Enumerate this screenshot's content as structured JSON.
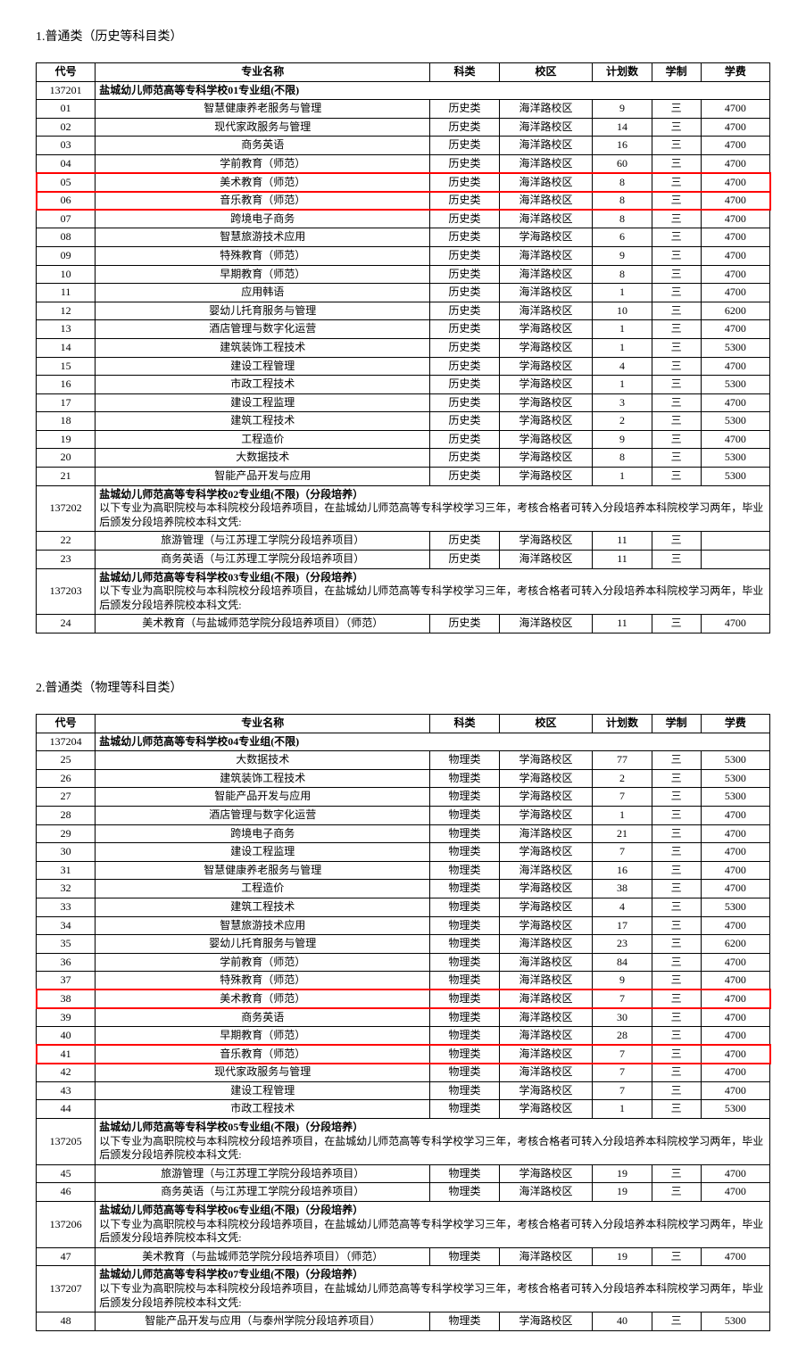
{
  "colors": {
    "highlight": "#f00",
    "border": "#000",
    "bg": "#ffffff"
  },
  "headers": {
    "code": "代号",
    "major": "专业名称",
    "type": "科类",
    "campus": "校区",
    "plan": "计划数",
    "years": "学制",
    "fee": "学费"
  },
  "sections": [
    {
      "title": "1.普通类（历史等科目类）",
      "groups": [
        {
          "code": "137201",
          "header": "盐城幼儿师范高等专科学校01专业组(不限)",
          "note": "",
          "rows": [
            {
              "c": "01",
              "m": "智慧健康养老服务与管理",
              "t": "历史类",
              "p": "海洋路校区",
              "n": "9",
              "y": "三",
              "f": "4700"
            },
            {
              "c": "02",
              "m": "现代家政服务与管理",
              "t": "历史类",
              "p": "海洋路校区",
              "n": "14",
              "y": "三",
              "f": "4700"
            },
            {
              "c": "03",
              "m": "商务英语",
              "t": "历史类",
              "p": "海洋路校区",
              "n": "16",
              "y": "三",
              "f": "4700"
            },
            {
              "c": "04",
              "m": "学前教育（师范）",
              "t": "历史类",
              "p": "海洋路校区",
              "n": "60",
              "y": "三",
              "f": "4700"
            },
            {
              "c": "05",
              "m": "美术教育（师范）",
              "t": "历史类",
              "p": "海洋路校区",
              "n": "8",
              "y": "三",
              "f": "4700",
              "hl": true
            },
            {
              "c": "06",
              "m": "音乐教育（师范）",
              "t": "历史类",
              "p": "海洋路校区",
              "n": "8",
              "y": "三",
              "f": "4700",
              "hl": true
            },
            {
              "c": "07",
              "m": "跨境电子商务",
              "t": "历史类",
              "p": "海洋路校区",
              "n": "8",
              "y": "三",
              "f": "4700"
            },
            {
              "c": "08",
              "m": "智慧旅游技术应用",
              "t": "历史类",
              "p": "学海路校区",
              "n": "6",
              "y": "三",
              "f": "4700"
            },
            {
              "c": "09",
              "m": "特殊教育（师范）",
              "t": "历史类",
              "p": "海洋路校区",
              "n": "9",
              "y": "三",
              "f": "4700"
            },
            {
              "c": "10",
              "m": "早期教育（师范）",
              "t": "历史类",
              "p": "海洋路校区",
              "n": "8",
              "y": "三",
              "f": "4700"
            },
            {
              "c": "11",
              "m": "应用韩语",
              "t": "历史类",
              "p": "海洋路校区",
              "n": "1",
              "y": "三",
              "f": "4700"
            },
            {
              "c": "12",
              "m": "婴幼儿托育服务与管理",
              "t": "历史类",
              "p": "海洋路校区",
              "n": "10",
              "y": "三",
              "f": "6200"
            },
            {
              "c": "13",
              "m": "酒店管理与数字化运营",
              "t": "历史类",
              "p": "学海路校区",
              "n": "1",
              "y": "三",
              "f": "4700"
            },
            {
              "c": "14",
              "m": "建筑装饰工程技术",
              "t": "历史类",
              "p": "学海路校区",
              "n": "1",
              "y": "三",
              "f": "5300"
            },
            {
              "c": "15",
              "m": "建设工程管理",
              "t": "历史类",
              "p": "学海路校区",
              "n": "4",
              "y": "三",
              "f": "4700"
            },
            {
              "c": "16",
              "m": "市政工程技术",
              "t": "历史类",
              "p": "学海路校区",
              "n": "1",
              "y": "三",
              "f": "5300"
            },
            {
              "c": "17",
              "m": "建设工程监理",
              "t": "历史类",
              "p": "学海路校区",
              "n": "3",
              "y": "三",
              "f": "4700"
            },
            {
              "c": "18",
              "m": "建筑工程技术",
              "t": "历史类",
              "p": "学海路校区",
              "n": "2",
              "y": "三",
              "f": "5300"
            },
            {
              "c": "19",
              "m": "工程造价",
              "t": "历史类",
              "p": "学海路校区",
              "n": "9",
              "y": "三",
              "f": "4700"
            },
            {
              "c": "20",
              "m": "大数据技术",
              "t": "历史类",
              "p": "学海路校区",
              "n": "8",
              "y": "三",
              "f": "5300"
            },
            {
              "c": "21",
              "m": "智能产品开发与应用",
              "t": "历史类",
              "p": "学海路校区",
              "n": "1",
              "y": "三",
              "f": "5300"
            }
          ]
        },
        {
          "code": "137202",
          "header": "盐城幼儿师范高等专科学校02专业组(不限)（分段培养）",
          "note": "以下专业为高职院校与本科院校分段培养项目，在盐城幼儿师范高等专科学校学习三年，考核合格者可转入分段培养本科院校学习两年，毕业后颁发分段培养院校本科文凭:",
          "rows": [
            {
              "c": "22",
              "m": "旅游管理（与江苏理工学院分段培养项目）",
              "t": "历史类",
              "p": "学海路校区",
              "n": "11",
              "y": "三",
              "f": ""
            },
            {
              "c": "23",
              "m": "商务英语（与江苏理工学院分段培养项目）",
              "t": "历史类",
              "p": "海洋路校区",
              "n": "11",
              "y": "三",
              "f": ""
            }
          ]
        },
        {
          "code": "137203",
          "header": "盐城幼儿师范高等专科学校03专业组(不限)（分段培养）",
          "note": "以下专业为高职院校与本科院校分段培养项目，在盐城幼儿师范高等专科学校学习三年，考核合格者可转入分段培养本科院校学习两年，毕业后颁发分段培养院校本科文凭:",
          "rows": [
            {
              "c": "24",
              "m": "美术教育（与盐城师范学院分段培养项目）（师范）",
              "t": "历史类",
              "p": "海洋路校区",
              "n": "11",
              "y": "三",
              "f": "4700"
            }
          ]
        }
      ]
    },
    {
      "title": "2.普通类（物理等科目类）",
      "groups": [
        {
          "code": "137204",
          "header": "盐城幼儿师范高等专科学校04专业组(不限)",
          "note": "",
          "rows": [
            {
              "c": "25",
              "m": "大数据技术",
              "t": "物理类",
              "p": "学海路校区",
              "n": "77",
              "y": "三",
              "f": "5300"
            },
            {
              "c": "26",
              "m": "建筑装饰工程技术",
              "t": "物理类",
              "p": "学海路校区",
              "n": "2",
              "y": "三",
              "f": "5300"
            },
            {
              "c": "27",
              "m": "智能产品开发与应用",
              "t": "物理类",
              "p": "学海路校区",
              "n": "7",
              "y": "三",
              "f": "5300"
            },
            {
              "c": "28",
              "m": "酒店管理与数字化运营",
              "t": "物理类",
              "p": "学海路校区",
              "n": "1",
              "y": "三",
              "f": "4700"
            },
            {
              "c": "29",
              "m": "跨境电子商务",
              "t": "物理类",
              "p": "海洋路校区",
              "n": "21",
              "y": "三",
              "f": "4700"
            },
            {
              "c": "30",
              "m": "建设工程监理",
              "t": "物理类",
              "p": "学海路校区",
              "n": "7",
              "y": "三",
              "f": "4700"
            },
            {
              "c": "31",
              "m": "智慧健康养老服务与管理",
              "t": "物理类",
              "p": "海洋路校区",
              "n": "16",
              "y": "三",
              "f": "4700"
            },
            {
              "c": "32",
              "m": "工程造价",
              "t": "物理类",
              "p": "学海路校区",
              "n": "38",
              "y": "三",
              "f": "4700"
            },
            {
              "c": "33",
              "m": "建筑工程技术",
              "t": "物理类",
              "p": "学海路校区",
              "n": "4",
              "y": "三",
              "f": "5300"
            },
            {
              "c": "34",
              "m": "智慧旅游技术应用",
              "t": "物理类",
              "p": "学海路校区",
              "n": "17",
              "y": "三",
              "f": "4700"
            },
            {
              "c": "35",
              "m": "婴幼儿托育服务与管理",
              "t": "物理类",
              "p": "海洋路校区",
              "n": "23",
              "y": "三",
              "f": "6200"
            },
            {
              "c": "36",
              "m": "学前教育（师范）",
              "t": "物理类",
              "p": "海洋路校区",
              "n": "84",
              "y": "三",
              "f": "4700"
            },
            {
              "c": "37",
              "m": "特殊教育（师范）",
              "t": "物理类",
              "p": "海洋路校区",
              "n": "9",
              "y": "三",
              "f": "4700"
            },
            {
              "c": "38",
              "m": "美术教育（师范）",
              "t": "物理类",
              "p": "海洋路校区",
              "n": "7",
              "y": "三",
              "f": "4700",
              "hl": true
            },
            {
              "c": "39",
              "m": "商务英语",
              "t": "物理类",
              "p": "海洋路校区",
              "n": "30",
              "y": "三",
              "f": "4700"
            },
            {
              "c": "40",
              "m": "早期教育（师范）",
              "t": "物理类",
              "p": "海洋路校区",
              "n": "28",
              "y": "三",
              "f": "4700"
            },
            {
              "c": "41",
              "m": "音乐教育（师范）",
              "t": "物理类",
              "p": "海洋路校区",
              "n": "7",
              "y": "三",
              "f": "4700",
              "hl": true
            },
            {
              "c": "42",
              "m": "现代家政服务与管理",
              "t": "物理类",
              "p": "海洋路校区",
              "n": "7",
              "y": "三",
              "f": "4700"
            },
            {
              "c": "43",
              "m": "建设工程管理",
              "t": "物理类",
              "p": "学海路校区",
              "n": "7",
              "y": "三",
              "f": "4700"
            },
            {
              "c": "44",
              "m": "市政工程技术",
              "t": "物理类",
              "p": "学海路校区",
              "n": "1",
              "y": "三",
              "f": "5300"
            }
          ]
        },
        {
          "code": "137205",
          "header": "盐城幼儿师范高等专科学校05专业组(不限)（分段培养）",
          "note": "以下专业为高职院校与本科院校分段培养项目，在盐城幼儿师范高等专科学校学习三年，考核合格者可转入分段培养本科院校学习两年，毕业后颁发分段培养院校本科文凭:",
          "rows": [
            {
              "c": "45",
              "m": "旅游管理（与江苏理工学院分段培养项目）",
              "t": "物理类",
              "p": "学海路校区",
              "n": "19",
              "y": "三",
              "f": "4700"
            },
            {
              "c": "46",
              "m": "商务英语（与江苏理工学院分段培养项目）",
              "t": "物理类",
              "p": "海洋路校区",
              "n": "19",
              "y": "三",
              "f": "4700"
            }
          ]
        },
        {
          "code": "137206",
          "header": "盐城幼儿师范高等专科学校06专业组(不限)（分段培养）",
          "note": "以下专业为高职院校与本科院校分段培养项目，在盐城幼儿师范高等专科学校学习三年，考核合格者可转入分段培养本科院校学习两年，毕业后颁发分段培养院校本科文凭:",
          "rows": [
            {
              "c": "47",
              "m": "美术教育（与盐城师范学院分段培养项目）（师范）",
              "t": "物理类",
              "p": "海洋路校区",
              "n": "19",
              "y": "三",
              "f": "4700"
            }
          ]
        },
        {
          "code": "137207",
          "header": "盐城幼儿师范高等专科学校07专业组(不限)（分段培养）",
          "note": "以下专业为高职院校与本科院校分段培养项目，在盐城幼儿师范高等专科学校学习三年，考核合格者可转入分段培养本科院校学习两年，毕业后颁发分段培养院校本科文凭:",
          "rows": [
            {
              "c": "48",
              "m": "智能产品开发与应用（与泰州学院分段培养项目）",
              "t": "物理类",
              "p": "学海路校区",
              "n": "40",
              "y": "三",
              "f": "5300"
            }
          ]
        }
      ]
    }
  ]
}
